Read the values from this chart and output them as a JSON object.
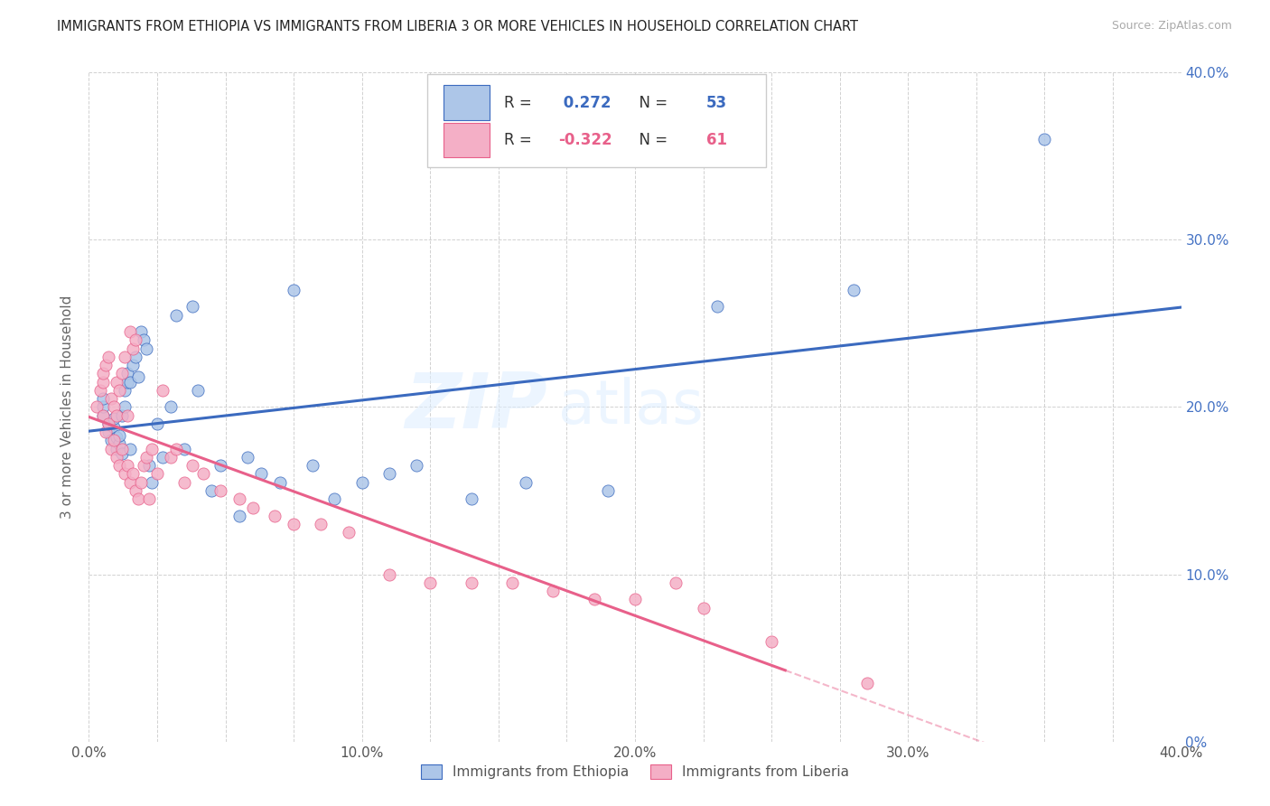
{
  "title": "IMMIGRANTS FROM ETHIOPIA VS IMMIGRANTS FROM LIBERIA 3 OR MORE VEHICLES IN HOUSEHOLD CORRELATION CHART",
  "source": "Source: ZipAtlas.com",
  "ylabel": "3 or more Vehicles in Household",
  "xlim": [
    0.0,
    0.4
  ],
  "ylim": [
    0.0,
    0.4
  ],
  "ethiopia_color": "#adc6e8",
  "liberia_color": "#f4afc6",
  "ethiopia_line_color": "#3b6abf",
  "liberia_line_color": "#e8608a",
  "ethiopia_R": 0.272,
  "ethiopia_N": 53,
  "liberia_R": -0.322,
  "liberia_N": 61,
  "watermark": "ZIPatlas",
  "ethiopia_scatter_x": [
    0.005,
    0.005,
    0.005,
    0.007,
    0.007,
    0.008,
    0.009,
    0.009,
    0.01,
    0.01,
    0.011,
    0.011,
    0.012,
    0.012,
    0.013,
    0.013,
    0.014,
    0.014,
    0.015,
    0.015,
    0.016,
    0.017,
    0.018,
    0.019,
    0.02,
    0.021,
    0.022,
    0.023,
    0.025,
    0.027,
    0.03,
    0.032,
    0.035,
    0.038,
    0.04,
    0.045,
    0.048,
    0.055,
    0.058,
    0.063,
    0.07,
    0.075,
    0.082,
    0.09,
    0.1,
    0.11,
    0.12,
    0.14,
    0.16,
    0.19,
    0.23,
    0.28,
    0.35
  ],
  "ethiopia_scatter_y": [
    0.195,
    0.2,
    0.205,
    0.185,
    0.19,
    0.18,
    0.188,
    0.193,
    0.175,
    0.182,
    0.178,
    0.183,
    0.172,
    0.195,
    0.2,
    0.21,
    0.215,
    0.22,
    0.175,
    0.215,
    0.225,
    0.23,
    0.218,
    0.245,
    0.24,
    0.235,
    0.165,
    0.155,
    0.19,
    0.17,
    0.2,
    0.255,
    0.175,
    0.26,
    0.21,
    0.15,
    0.165,
    0.135,
    0.17,
    0.16,
    0.155,
    0.27,
    0.165,
    0.145,
    0.155,
    0.16,
    0.165,
    0.145,
    0.155,
    0.15,
    0.26,
    0.27,
    0.36
  ],
  "liberia_scatter_x": [
    0.003,
    0.004,
    0.005,
    0.005,
    0.005,
    0.006,
    0.006,
    0.007,
    0.007,
    0.008,
    0.008,
    0.009,
    0.009,
    0.01,
    0.01,
    0.01,
    0.011,
    0.011,
    0.012,
    0.012,
    0.013,
    0.013,
    0.014,
    0.014,
    0.015,
    0.015,
    0.016,
    0.016,
    0.017,
    0.017,
    0.018,
    0.019,
    0.02,
    0.021,
    0.022,
    0.023,
    0.025,
    0.027,
    0.03,
    0.032,
    0.035,
    0.038,
    0.042,
    0.048,
    0.055,
    0.06,
    0.068,
    0.075,
    0.085,
    0.095,
    0.11,
    0.125,
    0.14,
    0.155,
    0.17,
    0.185,
    0.2,
    0.215,
    0.225,
    0.25,
    0.285
  ],
  "liberia_scatter_y": [
    0.2,
    0.21,
    0.195,
    0.215,
    0.22,
    0.185,
    0.225,
    0.19,
    0.23,
    0.175,
    0.205,
    0.18,
    0.2,
    0.17,
    0.195,
    0.215,
    0.165,
    0.21,
    0.175,
    0.22,
    0.16,
    0.23,
    0.165,
    0.195,
    0.155,
    0.245,
    0.235,
    0.16,
    0.15,
    0.24,
    0.145,
    0.155,
    0.165,
    0.17,
    0.145,
    0.175,
    0.16,
    0.21,
    0.17,
    0.175,
    0.155,
    0.165,
    0.16,
    0.15,
    0.145,
    0.14,
    0.135,
    0.13,
    0.13,
    0.125,
    0.1,
    0.095,
    0.095,
    0.095,
    0.09,
    0.085,
    0.085,
    0.095,
    0.08,
    0.06,
    0.035
  ]
}
